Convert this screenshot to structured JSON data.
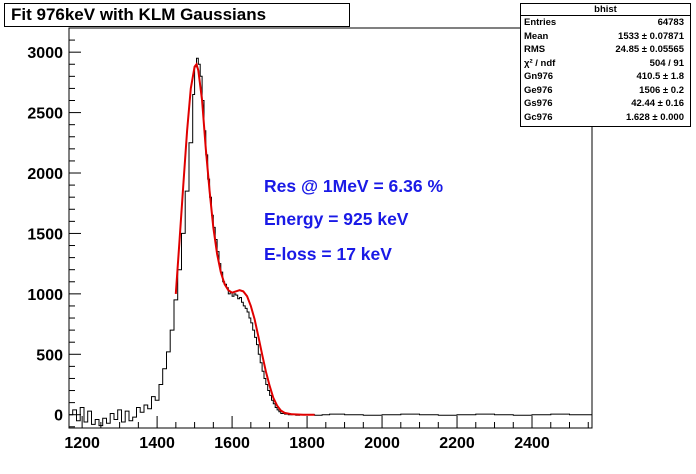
{
  "chart_data": {
    "type": "histogram",
    "title": "Fit 976keV with KLM Gaussians",
    "xlim": [
      1165,
      2560
    ],
    "ylim": [
      -110,
      3200
    ],
    "x_ticks": [
      1200,
      1400,
      1600,
      1800,
      2000,
      2200,
      2400
    ],
    "y_ticks": [
      0,
      500,
      1000,
      1500,
      2000,
      2500,
      3000
    ],
    "series": [
      {
        "kind": "histogram",
        "color": "#000000",
        "points": [
          [
            1165,
            0
          ],
          [
            1175,
            40
          ],
          [
            1185,
            -50
          ],
          [
            1195,
            60
          ],
          [
            1205,
            -60
          ],
          [
            1215,
            30
          ],
          [
            1225,
            -80
          ],
          [
            1235,
            -40
          ],
          [
            1245,
            -90
          ],
          [
            1255,
            -30
          ],
          [
            1265,
            -70
          ],
          [
            1275,
            10
          ],
          [
            1285,
            -40
          ],
          [
            1295,
            40
          ],
          [
            1305,
            -60
          ],
          [
            1315,
            30
          ],
          [
            1325,
            -50
          ],
          [
            1335,
            -20
          ],
          [
            1345,
            60
          ],
          [
            1355,
            20
          ],
          [
            1365,
            80
          ],
          [
            1375,
            50
          ],
          [
            1385,
            150
          ],
          [
            1395,
            120
          ],
          [
            1405,
            250
          ],
          [
            1415,
            380
          ],
          [
            1425,
            520
          ],
          [
            1435,
            700
          ],
          [
            1445,
            950
          ],
          [
            1455,
            1200
          ],
          [
            1465,
            1500
          ],
          [
            1475,
            1850
          ],
          [
            1485,
            2250
          ],
          [
            1495,
            2650
          ],
          [
            1500,
            2880
          ],
          [
            1505,
            2950
          ],
          [
            1510,
            2900
          ],
          [
            1515,
            2800
          ],
          [
            1520,
            2600
          ],
          [
            1525,
            2350
          ],
          [
            1530,
            2150
          ],
          [
            1535,
            1950
          ],
          [
            1540,
            1800
          ],
          [
            1545,
            1650
          ],
          [
            1550,
            1550
          ],
          [
            1555,
            1450
          ],
          [
            1560,
            1350
          ],
          [
            1565,
            1250
          ],
          [
            1570,
            1180
          ],
          [
            1575,
            1100
          ],
          [
            1580,
            1080
          ],
          [
            1585,
            1050
          ],
          [
            1590,
            1000
          ],
          [
            1595,
            1010
          ],
          [
            1600,
            980
          ],
          [
            1605,
            1000
          ],
          [
            1610,
            990
          ],
          [
            1615,
            960
          ],
          [
            1620,
            970
          ],
          [
            1625,
            930
          ],
          [
            1630,
            900
          ],
          [
            1635,
            880
          ],
          [
            1640,
            850
          ],
          [
            1645,
            800
          ],
          [
            1650,
            760
          ],
          [
            1655,
            700
          ],
          [
            1660,
            640
          ],
          [
            1665,
            580
          ],
          [
            1670,
            500
          ],
          [
            1675,
            430
          ],
          [
            1680,
            360
          ],
          [
            1685,
            300
          ],
          [
            1690,
            250
          ],
          [
            1695,
            200
          ],
          [
            1700,
            160
          ],
          [
            1705,
            120
          ],
          [
            1710,
            90
          ],
          [
            1715,
            60
          ],
          [
            1720,
            40
          ],
          [
            1725,
            25
          ],
          [
            1730,
            10
          ],
          [
            1740,
            5
          ],
          [
            1750,
            0
          ],
          [
            1760,
            5
          ],
          [
            1770,
            -5
          ],
          [
            1780,
            0
          ],
          [
            1800,
            0
          ],
          [
            1820,
            -5
          ],
          [
            1840,
            0
          ],
          [
            1860,
            5
          ],
          [
            1900,
            0
          ],
          [
            1950,
            -5
          ],
          [
            2000,
            0
          ],
          [
            2050,
            5
          ],
          [
            2100,
            0
          ],
          [
            2150,
            -5
          ],
          [
            2200,
            0
          ],
          [
            2250,
            5
          ],
          [
            2300,
            0
          ],
          [
            2350,
            -5
          ],
          [
            2400,
            0
          ],
          [
            2450,
            5
          ],
          [
            2500,
            0
          ],
          [
            2560,
            0
          ]
        ]
      },
      {
        "kind": "fit",
        "color": "#e00000",
        "points": [
          [
            1450,
            1000
          ],
          [
            1460,
            1450
          ],
          [
            1470,
            1900
          ],
          [
            1480,
            2350
          ],
          [
            1490,
            2700
          ],
          [
            1500,
            2880
          ],
          [
            1505,
            2900
          ],
          [
            1510,
            2850
          ],
          [
            1520,
            2600
          ],
          [
            1530,
            2200
          ],
          [
            1540,
            1850
          ],
          [
            1550,
            1550
          ],
          [
            1560,
            1330
          ],
          [
            1570,
            1180
          ],
          [
            1580,
            1080
          ],
          [
            1590,
            1030
          ],
          [
            1600,
            1010
          ],
          [
            1610,
            1020
          ],
          [
            1620,
            1030
          ],
          [
            1630,
            1020
          ],
          [
            1640,
            980
          ],
          [
            1650,
            900
          ],
          [
            1660,
            790
          ],
          [
            1670,
            650
          ],
          [
            1680,
            500
          ],
          [
            1690,
            360
          ],
          [
            1700,
            240
          ],
          [
            1710,
            140
          ],
          [
            1720,
            75
          ],
          [
            1730,
            35
          ],
          [
            1740,
            15
          ],
          [
            1760,
            3
          ],
          [
            1790,
            0
          ],
          [
            1820,
            0
          ]
        ]
      }
    ]
  },
  "stats_box": {
    "title": "bhist",
    "rows": [
      {
        "label": "Entries",
        "value": "64783"
      },
      {
        "label": "Mean",
        "value": "1533  ± 0.07871"
      },
      {
        "label": "RMS",
        "value": "24.85  ± 0.05565"
      },
      {
        "label": "χ² / ndf",
        "value": "504 / 91"
      },
      {
        "label": "Gn976",
        "value": "410.5  ± 1.8"
      },
      {
        "label": "Ge976",
        "value": "1506  ± 0.2"
      },
      {
        "label": "Gs976",
        "value": "42.44  ± 0.16"
      },
      {
        "label": "Gc976",
        "value": "1.628  ± 0.000"
      }
    ]
  },
  "annotations": {
    "resolution": "Res @ 1MeV  =  6.36 %",
    "energy": "Energy  =  925 keV",
    "eloss": "E-loss  =  17 keV",
    "color": "#1a1ae6"
  }
}
